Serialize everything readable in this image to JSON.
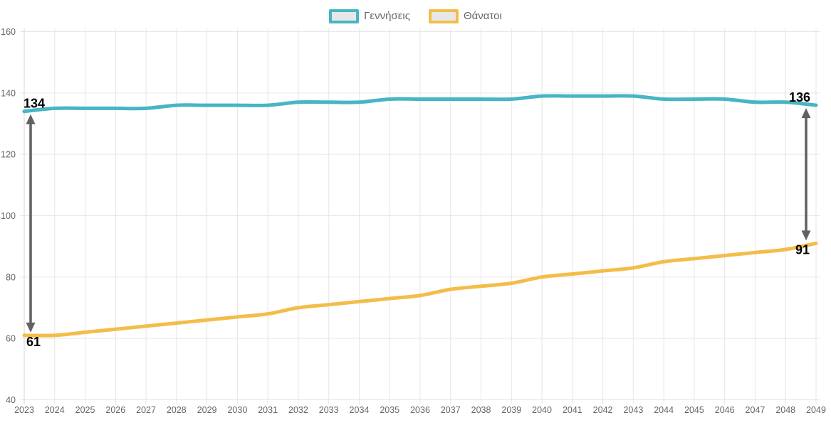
{
  "legend": {
    "items": [
      {
        "label": "Γεννήσεις",
        "series": "births"
      },
      {
        "label": "Θάνατοι",
        "series": "deaths"
      }
    ]
  },
  "chart_data": {
    "type": "line",
    "x": [
      2023,
      2024,
      2025,
      2026,
      2027,
      2028,
      2029,
      2030,
      2031,
      2032,
      2033,
      2034,
      2035,
      2036,
      2037,
      2038,
      2039,
      2040,
      2041,
      2042,
      2043,
      2044,
      2045,
      2046,
      2047,
      2048,
      2049
    ],
    "series": [
      {
        "name": "Γεννήσεις",
        "key": "births",
        "color": "#46b5c4",
        "values": [
          134,
          135,
          135,
          135,
          135,
          136,
          136,
          136,
          136,
          137,
          137,
          137,
          138,
          138,
          138,
          138,
          138,
          139,
          139,
          139,
          139,
          138,
          138,
          138,
          137,
          137,
          136
        ]
      },
      {
        "name": "Θάνατοι",
        "key": "deaths",
        "color": "#f3bd49",
        "values": [
          61,
          61,
          62,
          63,
          64,
          65,
          66,
          67,
          68,
          70,
          71,
          72,
          73,
          74,
          76,
          77,
          78,
          80,
          81,
          82,
          83,
          85,
          86,
          87,
          88,
          89,
          91
        ]
      }
    ],
    "ylim": [
      40,
      160
    ],
    "ytick_step": 20,
    "yticks": [
      40,
      60,
      80,
      100,
      120,
      140,
      160
    ],
    "grid": true,
    "legend_position": "top-center",
    "annotations": [
      {
        "side": "left",
        "x": 2023,
        "top_value": 134,
        "bottom_value": 61,
        "top_label": "134",
        "bottom_label": "61"
      },
      {
        "side": "right",
        "x": 2049,
        "top_value": 136,
        "bottom_value": 91,
        "top_label": "136",
        "bottom_label": "91"
      }
    ]
  },
  "colors": {
    "births": "#46b5c4",
    "deaths": "#f3bd49",
    "grid": "#e6e6e6",
    "first_gridline": "#d6d6d6",
    "axis_text": "#666666",
    "arrow": "#616161",
    "annotation_text": "#000000",
    "legend_swatch_fill": "#e7e7e7",
    "legend_text": "#666666",
    "background": "#ffffff"
  }
}
